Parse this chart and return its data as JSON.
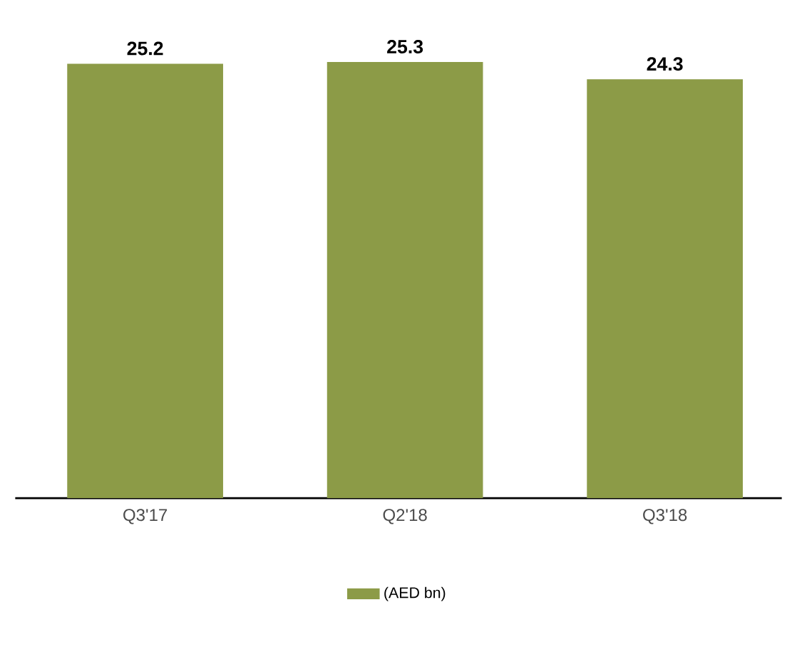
{
  "chart_data": {
    "type": "bar",
    "categories": [
      "Q3'17",
      "Q2'18",
      "Q3'18"
    ],
    "series": [
      {
        "name": "(AED bn)",
        "color": "#8c9b47",
        "values": [
          25.2,
          25.3,
          24.3
        ]
      }
    ],
    "data_labels": true,
    "legend": "bottom"
  }
}
